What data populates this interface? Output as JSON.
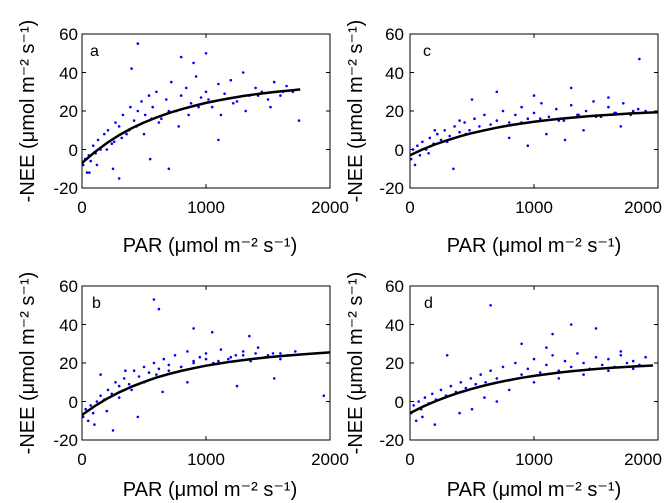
{
  "figure": {
    "background": "#ffffff",
    "point_color": "#0000ff",
    "fit_color": "#000000"
  },
  "chart_data": [
    {
      "type": "scatter",
      "panel": "a",
      "xlabel": "PAR (μmol m⁻² s⁻¹)",
      "ylabel": "-NEE (μmol m⁻² s⁻¹)",
      "xlim": [
        0,
        2000
      ],
      "ylim": [
        -20,
        60
      ],
      "xticks": [
        0,
        1000,
        2000
      ],
      "yticks": [
        -20,
        0,
        20,
        40,
        60
      ],
      "x_tick_labels": [
        "0",
        "1000",
        "2000"
      ],
      "y_tick_labels": [
        "-20",
        "0",
        "20",
        "40",
        "60"
      ],
      "grid": false,
      "series": [
        {
          "kind": "points",
          "x": [
            10,
            25,
            40,
            55,
            70,
            90,
            110,
            130,
            150,
            180,
            210,
            240,
            270,
            300,
            330,
            360,
            390,
            420,
            450,
            480,
            510,
            540,
            570,
            600,
            640,
            680,
            720,
            760,
            800,
            840,
            880,
            920,
            960,
            1000,
            1050,
            1100,
            1150,
            1200,
            1250,
            1300,
            1350,
            1400,
            1450,
            1500,
            1550,
            1600,
            1650,
            1700,
            1750,
            60,
            120,
            200,
            260,
            320,
            380,
            440,
            500,
            560,
            620,
            700,
            780,
            860,
            940,
            1020,
            1120,
            1220,
            1320,
            1420,
            1520,
            1620,
            400,
            450,
            800,
            900,
            1000,
            700,
            550,
            1100,
            300,
            250
          ],
          "y": [
            -8,
            -5,
            -12,
            -3,
            -6,
            2,
            -2,
            5,
            0,
            8,
            10,
            3,
            14,
            12,
            18,
            8,
            22,
            15,
            20,
            25,
            18,
            28,
            22,
            30,
            16,
            26,
            35,
            20,
            28,
            32,
            24,
            38,
            27,
            30,
            22,
            34,
            29,
            36,
            25,
            40,
            28,
            32,
            30,
            26,
            35,
            28,
            33,
            30,
            15,
            -12,
            -8,
            0,
            4,
            6,
            10,
            12,
            8,
            16,
            14,
            20,
            12,
            18,
            22,
            26,
            18,
            24,
            20,
            28,
            22,
            30,
            42,
            55,
            48,
            45,
            50,
            -10,
            -5,
            5,
            -15,
            -10
          ]
        },
        {
          "kind": "fit",
          "x": [
            0,
            100,
            200,
            300,
            400,
            500,
            600,
            700,
            800,
            900,
            1000,
            1100,
            1200,
            1300,
            1400,
            1500,
            1600,
            1700,
            1760
          ],
          "y": [
            -7,
            -1.5,
            3.3,
            7.5,
            11,
            14,
            16.6,
            18.9,
            20.9,
            22.6,
            24.2,
            25.5,
            26.7,
            27.8,
            28.7,
            29.5,
            30.2,
            30.8,
            31.2
          ]
        }
      ]
    },
    {
      "type": "scatter",
      "panel": "c",
      "xlabel": "PAR (μmol m⁻² s⁻¹)",
      "ylabel": "-NEE (μmol m⁻² s⁻¹)",
      "xlim": [
        0,
        2000
      ],
      "ylim": [
        -20,
        60
      ],
      "xticks": [
        0,
        1000,
        2000
      ],
      "yticks": [
        -20,
        0,
        20,
        40,
        60
      ],
      "x_tick_labels": [
        "0",
        "1000",
        "2000"
      ],
      "y_tick_labels": [
        "-20",
        "0",
        "20",
        "40",
        "60"
      ],
      "grid": false,
      "series": [
        {
          "kind": "points",
          "x": [
            10,
            25,
            40,
            60,
            80,
            100,
            130,
            160,
            190,
            220,
            250,
            280,
            320,
            360,
            400,
            440,
            480,
            520,
            560,
            600,
            650,
            700,
            750,
            800,
            850,
            900,
            950,
            1000,
            1060,
            1120,
            1180,
            1240,
            1300,
            1360,
            1420,
            1480,
            1540,
            1600,
            1660,
            1720,
            1780,
            1840,
            1900,
            150,
            300,
            450,
            600,
            750,
            900,
            1050,
            1200,
            1350,
            1500,
            1650,
            1800,
            500,
            700,
            1000,
            1300,
            1600,
            200,
            400,
            800,
            1100,
            1400,
            1700,
            1850,
            350,
            950,
            1250
          ],
          "y": [
            -5,
            0,
            -8,
            2,
            -3,
            4,
            0,
            6,
            3,
            8,
            5,
            10,
            7,
            12,
            9,
            14,
            10,
            16,
            12,
            18,
            13,
            15,
            20,
            14,
            18,
            22,
            16,
            19,
            24,
            17,
            21,
            15,
            23,
            18,
            20,
            25,
            17,
            22,
            19,
            24,
            18,
            21,
            20,
            -2,
            4,
            8,
            10,
            12,
            14,
            16,
            15,
            18,
            17,
            19,
            20,
            26,
            30,
            28,
            32,
            27,
            10,
            15,
            6,
            8,
            10,
            12,
            47,
            -10,
            2,
            5
          ]
        },
        {
          "kind": "fit",
          "x": [
            0,
            100,
            200,
            300,
            400,
            500,
            600,
            700,
            800,
            900,
            1000,
            1100,
            1200,
            1300,
            1400,
            1500,
            1600,
            1700,
            1800,
            1900,
            2000
          ],
          "y": [
            -3,
            0,
            2.6,
            4.8,
            6.8,
            8.5,
            10,
            11.3,
            12.5,
            13.5,
            14.4,
            15.2,
            15.9,
            16.5,
            17.1,
            17.6,
            18,
            18.4,
            18.8,
            19.1,
            19.4
          ]
        }
      ]
    },
    {
      "type": "scatter",
      "panel": "b",
      "xlabel": "PAR (μmol m⁻² s⁻¹)",
      "ylabel": "-NEE (μmol m⁻² s⁻¹)",
      "xlim": [
        0,
        2000
      ],
      "ylim": [
        -20,
        60
      ],
      "xticks": [
        0,
        1000,
        2000
      ],
      "yticks": [
        -20,
        0,
        20,
        40,
        60
      ],
      "x_tick_labels": [
        "0",
        "1000",
        "2000"
      ],
      "y_tick_labels": [
        "-20",
        "0",
        "20",
        "40",
        "60"
      ],
      "grid": false,
      "series": [
        {
          "kind": "points",
          "x": [
            10,
            30,
            50,
            70,
            90,
            120,
            150,
            180,
            210,
            240,
            270,
            300,
            340,
            380,
            420,
            460,
            500,
            540,
            580,
            620,
            660,
            700,
            750,
            800,
            850,
            900,
            950,
            1000,
            1060,
            1120,
            1180,
            1240,
            1300,
            1360,
            1420,
            1480,
            1540,
            1600,
            1660,
            1720,
            100,
            200,
            300,
            400,
            500,
            600,
            700,
            800,
            900,
            1000,
            1100,
            1200,
            1300,
            1400,
            1500,
            1600,
            580,
            620,
            900,
            1050,
            1350,
            1950,
            250,
            450,
            650,
            850,
            1250,
            1550,
            150,
            350
          ],
          "y": [
            -8,
            -4,
            -10,
            -2,
            -6,
            0,
            3,
            1,
            6,
            4,
            10,
            8,
            12,
            9,
            16,
            13,
            18,
            15,
            20,
            17,
            22,
            19,
            24,
            18,
            26,
            21,
            23,
            25,
            20,
            27,
            22,
            24,
            26,
            21,
            28,
            23,
            25,
            22,
            24,
            26,
            -12,
            -5,
            2,
            6,
            10,
            14,
            16,
            18,
            20,
            22,
            21,
            23,
            24,
            25,
            24,
            25,
            53,
            48,
            38,
            36,
            34,
            3,
            -15,
            -8,
            5,
            10,
            8,
            12,
            14,
            16
          ]
        },
        {
          "kind": "fit",
          "x": [
            0,
            100,
            200,
            300,
            400,
            500,
            600,
            700,
            800,
            900,
            1000,
            1100,
            1200,
            1300,
            1400,
            1500,
            1600,
            1700,
            1800,
            1900,
            2000
          ],
          "y": [
            -7,
            -2.5,
            1.4,
            4.8,
            7.7,
            10.2,
            12.4,
            14.3,
            15.9,
            17.3,
            18.6,
            19.7,
            20.7,
            21.5,
            22.3,
            23,
            23.6,
            24.1,
            24.6,
            25.1,
            25.5
          ]
        }
      ]
    },
    {
      "type": "scatter",
      "panel": "d",
      "xlabel": "PAR (μmol m⁻² s⁻¹)",
      "ylabel": "-NEE (μmol m⁻² s⁻¹)",
      "xlim": [
        0,
        2000
      ],
      "ylim": [
        -20,
        60
      ],
      "xticks": [
        0,
        1000,
        2000
      ],
      "yticks": [
        -20,
        0,
        20,
        40,
        60
      ],
      "x_tick_labels": [
        "0",
        "1000",
        "2000"
      ],
      "y_tick_labels": [
        "-20",
        "0",
        "20",
        "40",
        "60"
      ],
      "grid": false,
      "series": [
        {
          "kind": "points",
          "x": [
            10,
            30,
            50,
            70,
            90,
            120,
            150,
            180,
            210,
            250,
            290,
            330,
            370,
            410,
            450,
            490,
            530,
            570,
            610,
            650,
            700,
            750,
            800,
            850,
            900,
            950,
            1000,
            1050,
            1100,
            1150,
            1200,
            1250,
            1300,
            1350,
            1400,
            1450,
            1500,
            1550,
            1600,
            1650,
            1700,
            1750,
            1800,
            1850,
            1900,
            200,
            400,
            600,
            800,
            1000,
            1200,
            1400,
            1600,
            1800,
            650,
            1300,
            1500,
            1150,
            300,
            900,
            1100,
            1700,
            100,
            500,
            700
          ],
          "y": [
            -6,
            -2,
            -10,
            0,
            -4,
            2,
            -1,
            4,
            1,
            6,
            3,
            8,
            5,
            10,
            7,
            12,
            9,
            14,
            10,
            16,
            12,
            18,
            11,
            20,
            14,
            17,
            22,
            15,
            19,
            24,
            16,
            21,
            18,
            25,
            20,
            17,
            23,
            19,
            22,
            18,
            24,
            20,
            21,
            19,
            23,
            -12,
            -6,
            2,
            6,
            10,
            12,
            14,
            16,
            17,
            50,
            40,
            38,
            35,
            24,
            30,
            28,
            26,
            -8,
            -4,
            0
          ]
        },
        {
          "kind": "fit",
          "x": [
            0,
            100,
            200,
            300,
            400,
            500,
            600,
            700,
            800,
            900,
            1000,
            1100,
            1200,
            1300,
            1400,
            1500,
            1600,
            1700,
            1800,
            1900,
            1960
          ],
          "y": [
            -6,
            -2.8,
            0,
            2.5,
            4.7,
            6.6,
            8.3,
            9.8,
            11.1,
            12.3,
            13.3,
            14.2,
            15,
            15.7,
            16.3,
            16.9,
            17.4,
            17.8,
            18.2,
            18.5,
            18.7
          ]
        }
      ]
    }
  ]
}
